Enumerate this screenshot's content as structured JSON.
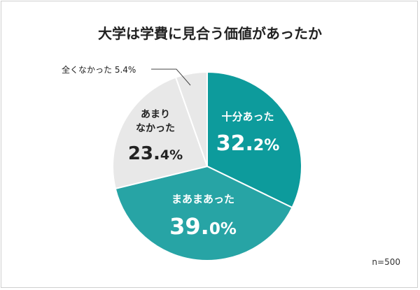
{
  "chart_data": {
    "type": "pie",
    "title": "大学は学費に見合う価値があったか",
    "start": "12 o'clock",
    "direction": "clockwise",
    "slices": [
      {
        "label": "十分あった",
        "value": 32.2,
        "value_main": "32.",
        "value_dec": "2%",
        "color": "#0d9b9c",
        "text_color": "#ffffff"
      },
      {
        "label": "まあまあった",
        "value": 39.0,
        "value_main": "39.",
        "value_dec": "0%",
        "color": "#27a4a5",
        "text_color": "#ffffff"
      },
      {
        "label": "あまり\nなかった",
        "value": 23.4,
        "value_main": "23.",
        "value_dec": "4%",
        "color": "#e8e8e8",
        "text_color": "#222222"
      },
      {
        "label": "全くなかった",
        "value": 5.4,
        "value_text": "5.4%",
        "color": "#e8e8e8",
        "text_color": "#222222"
      }
    ],
    "sample_size": "n=500"
  }
}
